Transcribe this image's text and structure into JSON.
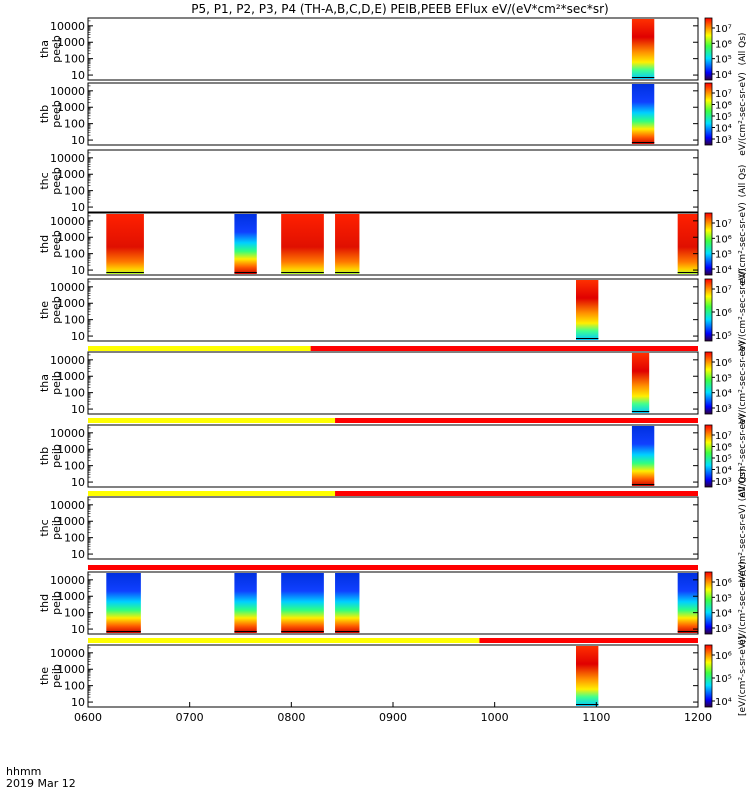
{
  "title": "P5, P1, P2, P3, P4 (TH-A,B,C,D,E) PEIB,PEEB EFlux eV/(eV*cm²*sec*sr)",
  "footer": {
    "time_label": "hhmm",
    "date_label": "2019 Mar 12"
  },
  "chart_data": {
    "type": "heatmap",
    "x_ticks": [
      "0600",
      "0700",
      "0800",
      "0900",
      "1000",
      "1100",
      "1200"
    ],
    "x_range": [
      600,
      1200
    ],
    "y_scale": "log",
    "panels": [
      {
        "id": "tha_peeb",
        "label1": "tha",
        "label2": "peeb",
        "ylim": [
          5,
          30000
        ],
        "yticks": [
          "10000",
          "1000",
          "100",
          "10"
        ],
        "cbar_ticks": [
          "10⁷",
          "10⁶",
          "10⁵",
          "10⁴"
        ],
        "cbar_unit": "(All Qs)",
        "blocks": [
          {
            "x": [
              1135,
              1157
            ],
            "mode": "top-red"
          }
        ],
        "status_bar": null
      },
      {
        "id": "thb_peeb",
        "label1": "thb",
        "label2": "peeb",
        "ylim": [
          5,
          30000
        ],
        "yticks": [
          "10000",
          "1000",
          "100",
          "10"
        ],
        "cbar_ticks": [
          "10⁷",
          "10⁶",
          "10⁵",
          "10⁴",
          "10³"
        ],
        "cbar_unit": "eV/(cm²-sec-sr-eV)",
        "blocks": [
          {
            "x": [
              1135,
              1157
            ],
            "mode": "blue-top"
          }
        ],
        "status_bar": null
      },
      {
        "id": "thc_peeb",
        "label1": "thc",
        "label2": "peeb",
        "ylim": [
          5,
          30000
        ],
        "yticks": [
          "10000",
          "1000",
          "100",
          "10"
        ],
        "cbar_ticks": [],
        "cbar_unit": "(All Qs)",
        "blocks": [],
        "status_bar": null
      },
      {
        "id": "thd_peeb",
        "label1": "thd",
        "label2": "peeb",
        "ylim": [
          5,
          30000
        ],
        "yticks": [
          "10000",
          "1000",
          "100",
          "10"
        ],
        "cbar_ticks": [
          "10⁷",
          "10⁶",
          "10⁵",
          "10⁴"
        ],
        "cbar_unit": "eV/(cm²-sec-sr-eV)",
        "blocks": [
          {
            "x": [
              618,
              655
            ],
            "mode": "red"
          },
          {
            "x": [
              744,
              766
            ],
            "mode": "blue-top"
          },
          {
            "x": [
              790,
              832
            ],
            "mode": "red"
          },
          {
            "x": [
              843,
              867
            ],
            "mode": "red"
          },
          {
            "x": [
              1180,
              1200
            ],
            "mode": "red"
          }
        ],
        "status_bar": null
      },
      {
        "id": "the_peeb",
        "label1": "the",
        "label2": "peeb",
        "ylim": [
          5,
          30000
        ],
        "yticks": [
          "10000",
          "1000",
          "100",
          "10"
        ],
        "cbar_ticks": [
          "10⁷",
          "10⁶",
          "10⁵"
        ],
        "cbar_unit": "eV/(cm²-sec-sr-eV)",
        "blocks": [
          {
            "x": [
              1080,
              1102
            ],
            "mode": "top-red"
          }
        ],
        "status_bar": {
          "split": 819
        }
      },
      {
        "id": "tha_peib",
        "label1": "tha",
        "label2": "peib",
        "ylim": [
          5,
          30000
        ],
        "yticks": [
          "10000",
          "1000",
          "100",
          "10"
        ],
        "cbar_ticks": [
          "10⁶",
          "10⁵",
          "10⁴",
          "10³"
        ],
        "cbar_unit": "eV/(cm²-sec-sr-eV)",
        "blocks": [
          {
            "x": [
              1135,
              1152
            ],
            "mode": "top-red"
          }
        ],
        "status_bar": {
          "split": 843
        }
      },
      {
        "id": "thb_peib",
        "label1": "thb",
        "label2": "peib",
        "ylim": [
          5,
          30000
        ],
        "yticks": [
          "10000",
          "1000",
          "100",
          "10"
        ],
        "cbar_ticks": [
          "10⁷",
          "10⁶",
          "10⁵",
          "10⁴",
          "10³"
        ],
        "cbar_unit": "eV/(cm²-sec-sr-eV)",
        "blocks": [
          {
            "x": [
              1135,
              1157
            ],
            "mode": "blue-top"
          }
        ],
        "status_bar": {
          "split": null
        }
      },
      {
        "id": "thc_peib",
        "label1": "thc",
        "label2": "peib",
        "ylim": [
          5,
          30000
        ],
        "yticks": [
          "10000",
          "1000",
          "100",
          "10"
        ],
        "cbar_ticks": [],
        "cbar_unit": "eV/(cm²-sec-sr-eV) (All Qs)",
        "blocks": [],
        "status_bar": {
          "split": 600
        }
      },
      {
        "id": "thd_peib",
        "label1": "thd",
        "label2": "peib",
        "ylim": [
          5,
          30000
        ],
        "yticks": [
          "10000",
          "1000",
          "100",
          "10"
        ],
        "cbar_ticks": [
          "10⁶",
          "10⁵",
          "10⁴",
          "10³"
        ],
        "cbar_unit": "eV/(cm²-sec-sr-eV)",
        "blocks": [
          {
            "x": [
              618,
              652
            ],
            "mode": "blue-top"
          },
          {
            "x": [
              744,
              766
            ],
            "mode": "blue-top"
          },
          {
            "x": [
              790,
              832
            ],
            "mode": "blue-top"
          },
          {
            "x": [
              843,
              867
            ],
            "mode": "blue-top"
          },
          {
            "x": [
              1180,
              1200
            ],
            "mode": "blue-top"
          }
        ],
        "status_bar": {
          "split": 985
        }
      },
      {
        "id": "the_peib",
        "label1": "the",
        "label2": "peib",
        "ylim": [
          5,
          30000
        ],
        "yticks": [
          "10000",
          "1000",
          "100",
          "10"
        ],
        "cbar_ticks": [
          "10⁶",
          "10⁵",
          "10⁴"
        ],
        "cbar_unit": "[eV/(cm²-s-sr-eV)]",
        "blocks": [
          {
            "x": [
              1080,
              1102
            ],
            "mode": "top-red"
          }
        ],
        "status_bar": null
      }
    ]
  },
  "colors": {
    "status_yellow": "#ffff00",
    "status_red": "#ff0000",
    "frame": "#000000"
  }
}
